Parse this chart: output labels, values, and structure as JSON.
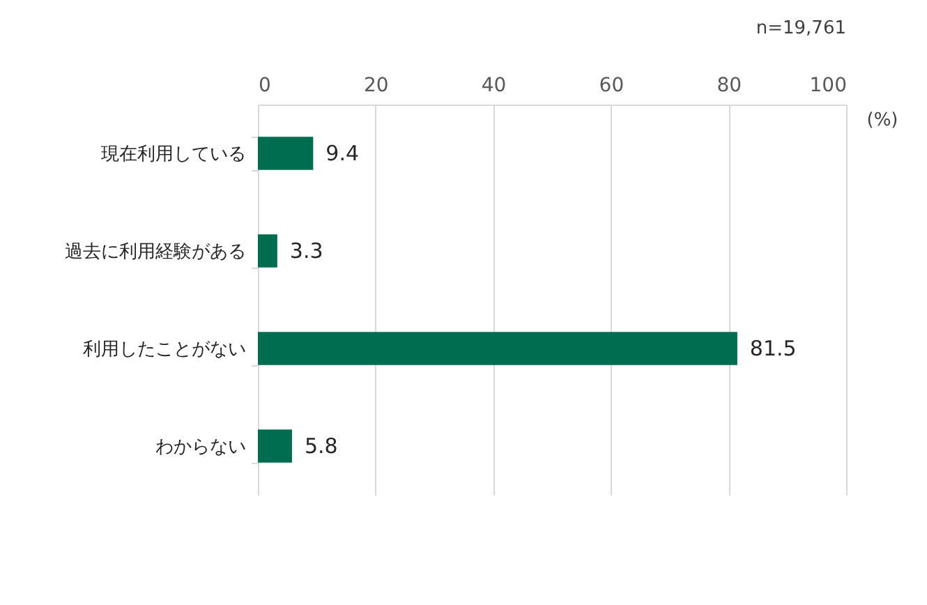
{
  "chart_data": {
    "type": "bar",
    "orientation": "horizontal",
    "categories": [
      "現在利用している",
      "過去に利用経験がある",
      "利用したことがない",
      "わからない"
    ],
    "values": [
      9.4,
      3.3,
      81.5,
      5.8
    ],
    "color": "#006d50",
    "xlabel": "(%)",
    "xlim": [
      0,
      100
    ],
    "xticks": [
      0,
      20,
      40,
      60,
      80,
      100
    ],
    "grid": "x",
    "data_labels": true,
    "annotations": [
      "n=19,761"
    ]
  }
}
